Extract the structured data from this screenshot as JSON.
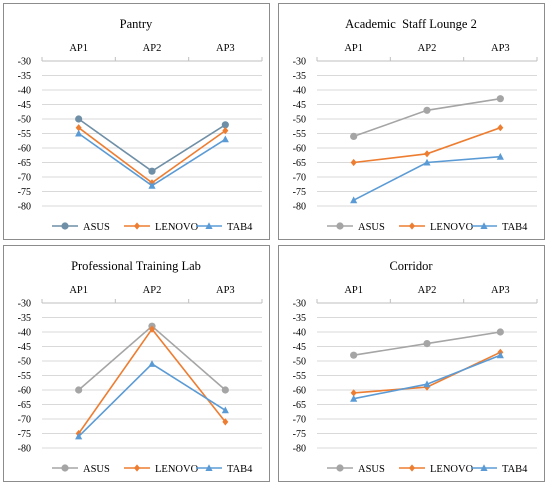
{
  "colors": {
    "ASUS": "#a5a5a5",
    "LENOVO": "#ed7d31",
    "TAB4": "#5b9bd5",
    "ASUS_pantry": "#6f8fa6",
    "grid": "#d9d9d9",
    "axis": "#bfbfbf"
  },
  "chart_data": [
    {
      "type": "line",
      "title": "Pantry",
      "categories": [
        "AP1",
        "AP2",
        "AP3"
      ],
      "ylim": [
        -80,
        -30
      ],
      "yticks": [
        "-30",
        "-35",
        "-40",
        "-45",
        "-50",
        "-55",
        "-60",
        "-65",
        "-70",
        "-75",
        "-80"
      ],
      "grid": true,
      "legend": "bottom",
      "series": [
        {
          "name": "ASUS",
          "values": [
            -50,
            -68,
            -52
          ],
          "marker": "circle"
        },
        {
          "name": "LENOVO",
          "values": [
            -53,
            -72,
            -54
          ],
          "marker": "diamond"
        },
        {
          "name": "TAB4",
          "values": [
            -55,
            -73,
            -57
          ],
          "marker": "triangle"
        }
      ]
    },
    {
      "type": "line",
      "title": "Academic  Staff Lounge 2",
      "categories": [
        "AP1",
        "AP2",
        "AP3"
      ],
      "ylim": [
        -80,
        -30
      ],
      "yticks": [
        "-30",
        "-35",
        "-40",
        "-45",
        "-50",
        "-55",
        "-60",
        "-65",
        "-70",
        "-75",
        "-80"
      ],
      "grid": true,
      "legend": "bottom",
      "series": [
        {
          "name": "ASUS",
          "values": [
            -56,
            -47,
            -43
          ],
          "marker": "circle"
        },
        {
          "name": "LENOVO",
          "values": [
            -65,
            -62,
            -53
          ],
          "marker": "diamond"
        },
        {
          "name": "TAB4",
          "values": [
            -78,
            -65,
            -63
          ],
          "marker": "triangle"
        }
      ]
    },
    {
      "type": "line",
      "title": "Professional Training Lab",
      "categories": [
        "AP1",
        "AP2",
        "AP3"
      ],
      "ylim": [
        -80,
        -30
      ],
      "yticks": [
        "-30",
        "-35",
        "-40",
        "-45",
        "-50",
        "-55",
        "-60",
        "-65",
        "-70",
        "-75",
        "-80"
      ],
      "grid": true,
      "legend": "bottom",
      "series": [
        {
          "name": "ASUS",
          "values": [
            -60,
            -38,
            -60
          ],
          "marker": "circle"
        },
        {
          "name": "LENOVO",
          "values": [
            -75,
            -39,
            -71
          ],
          "marker": "diamond"
        },
        {
          "name": "TAB4",
          "values": [
            -76,
            -51,
            -67
          ],
          "marker": "triangle"
        }
      ]
    },
    {
      "type": "line",
      "title": "Corridor",
      "categories": [
        "AP1",
        "AP2",
        "AP3"
      ],
      "ylim": [
        -80,
        -30
      ],
      "yticks": [
        "-30",
        "-35",
        "-40",
        "-45",
        "-50",
        "-55",
        "-60",
        "-65",
        "-70",
        "-75",
        "-80"
      ],
      "grid": true,
      "legend": "bottom",
      "series": [
        {
          "name": "ASUS",
          "values": [
            -48,
            -44,
            -40
          ],
          "marker": "circle"
        },
        {
          "name": "LENOVO",
          "values": [
            -61,
            -59,
            -47
          ],
          "marker": "diamond"
        },
        {
          "name": "TAB4",
          "values": [
            -63,
            -58,
            -48
          ],
          "marker": "triangle"
        }
      ]
    }
  ]
}
